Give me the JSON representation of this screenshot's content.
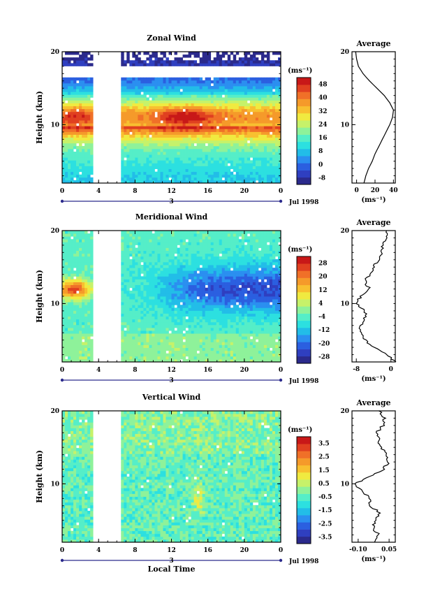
{
  "colors": {
    "heat": [
      "#2b2a8c",
      "#2f3fc0",
      "#2b5fe0",
      "#2b8ff0",
      "#22bde8",
      "#2ce0e0",
      "#55eec8",
      "#8ef29a",
      "#c6f26a",
      "#f0ea40",
      "#f8c030",
      "#f59a2a",
      "#f07028",
      "#e04020",
      "#c81818"
    ],
    "axis": "#000000",
    "time_axis": "#2b2a8c"
  },
  "shared": {
    "ylabel": "Height (km)",
    "y_ticks": [
      "20",
      "10"
    ],
    "x_ticks": [
      "0",
      "4",
      "8",
      "12",
      "16",
      "20",
      "0"
    ],
    "date_tick": "3",
    "date_label": "Jul 1998",
    "xlabel": "Local Time",
    "avg_title": "Average",
    "unit": "(ms⁻¹)"
  },
  "chart_data": [
    {
      "type": "heatmap",
      "title": "Zonal Wind",
      "ylabel": "Height (km)",
      "ylim": [
        2,
        20
      ],
      "xlim_hours": [
        0,
        24
      ],
      "gap_hours": [
        3.3,
        6.6
      ],
      "colorbar_ticks": [
        "48",
        "40",
        "32",
        "24",
        "16",
        "8",
        "0",
        "-8"
      ],
      "colorbar_range": [
        -12,
        52
      ],
      "profile": {
        "title": "Average",
        "x_ticks": [
          "0",
          "20",
          "40"
        ],
        "xlim": [
          -5,
          42
        ],
        "height_km": [
          2,
          3,
          4,
          5,
          6,
          7,
          8,
          9,
          10,
          11,
          12,
          13,
          14,
          15,
          16,
          17,
          18,
          19,
          20
        ],
        "values": [
          8,
          10,
          13,
          17,
          20,
          24,
          28,
          32,
          36,
          39,
          40,
          36,
          30,
          22,
          14,
          7,
          2,
          0,
          -1
        ]
      }
    },
    {
      "type": "heatmap",
      "title": "Meridional Wind",
      "ylabel": "Height (km)",
      "ylim": [
        2,
        20
      ],
      "xlim_hours": [
        0,
        24
      ],
      "gap_hours": [
        3.3,
        6.6
      ],
      "colorbar_ticks": [
        "28",
        "20",
        "12",
        "4",
        "-4",
        "-12",
        "-20",
        "-28"
      ],
      "colorbar_range": [
        -32,
        32
      ],
      "profile": {
        "title": "Average",
        "x_ticks": [
          "-8",
          "0"
        ],
        "xlim": [
          -9,
          1
        ],
        "height_km": [
          2,
          3,
          4,
          5,
          6,
          7,
          8,
          9,
          10,
          11,
          12,
          13,
          14,
          15,
          16,
          17,
          18,
          19,
          20
        ],
        "values": [
          1,
          -1,
          -4,
          -6,
          -7,
          -7,
          -6,
          -6,
          -8,
          -7,
          -5,
          -6,
          -5,
          -4,
          -3,
          -2,
          -2,
          -1,
          -1
        ]
      }
    },
    {
      "type": "heatmap",
      "title": "Vertical Wind",
      "ylabel": "Height (km)",
      "xlabel": "Local Time",
      "ylim": [
        2,
        20
      ],
      "xlim_hours": [
        0,
        24
      ],
      "gap_hours": [
        3.3,
        6.6
      ],
      "colorbar_ticks": [
        "3.5",
        "2.5",
        "1.5",
        "0.5",
        "-0.5",
        "-1.5",
        "-2.5",
        "-3.5"
      ],
      "colorbar_range": [
        -4,
        4
      ],
      "profile": {
        "title": "Average",
        "x_ticks": [
          "-0.10",
          "0.05"
        ],
        "xlim": [
          -0.13,
          0.08
        ],
        "height_km": [
          2,
          3,
          4,
          5,
          6,
          7,
          8,
          9,
          10,
          11,
          12,
          13,
          14,
          15,
          16,
          17,
          18,
          19,
          20
        ],
        "values": [
          -0.02,
          0.0,
          -0.03,
          -0.02,
          0.01,
          -0.05,
          -0.04,
          -0.08,
          -0.12,
          -0.04,
          0.02,
          0.05,
          0.04,
          0.01,
          0.0,
          -0.01,
          0.02,
          0.03,
          0.0
        ]
      }
    }
  ]
}
